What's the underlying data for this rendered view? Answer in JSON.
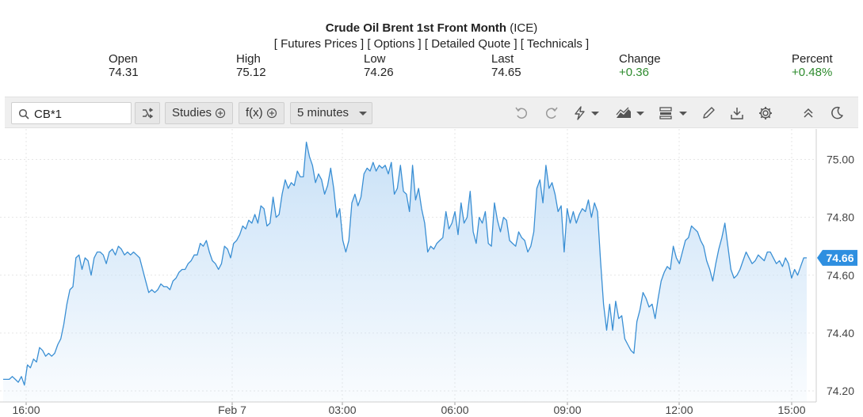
{
  "header": {
    "title": "Crude Oil Brent 1st Front Month",
    "exchange": "(ICE)",
    "links": [
      "[ Futures Prices ]",
      "[ Options ]",
      "[ Detailed Quote ]",
      "[ Technicals ]"
    ]
  },
  "stats": [
    {
      "label": "Open",
      "value": "74.31"
    },
    {
      "label": "High",
      "value": "75.12"
    },
    {
      "label": "Low",
      "value": "74.26"
    },
    {
      "label": "Last",
      "value": "74.65"
    },
    {
      "label": "Change",
      "value": "+0.36"
    },
    {
      "label": "Percent",
      "value": "+0.48%"
    }
  ],
  "toolbar": {
    "symbol": "CB*1",
    "studies_label": "Studies",
    "fx_label": "f(x)",
    "interval_label": "5 minutes",
    "icons": [
      "compare-icon",
      "undo-icon",
      "redo-icon",
      "lightning-icon",
      "chart-type-icon",
      "layout-icon",
      "pencil-icon",
      "download-icon",
      "gear-icon",
      "collapse-icon",
      "dark-mode-icon"
    ]
  },
  "colors": {
    "line": "#3a8fd4",
    "fill_top": "#cfe4f8",
    "last_badge": "#2e8fe0",
    "up": "#2e8b2e"
  },
  "chart_data": {
    "type": "area",
    "x_tick_labels": [
      "16:00",
      "Feb 7",
      "03:00",
      "06:00",
      "09:00",
      "12:00",
      "15:00"
    ],
    "y_tick_labels": [
      "75.00",
      "74.80",
      "74.60",
      "74.40",
      "74.20"
    ],
    "ylim": [
      74.17,
      75.1
    ],
    "last_value_label": "74.66",
    "grid": true,
    "series": [
      {
        "values": [
          74.24,
          74.24,
          74.24,
          74.25,
          74.24,
          74.23,
          74.25,
          74.22,
          74.29,
          74.28,
          74.31,
          74.3,
          74.35,
          74.34,
          74.32,
          74.33,
          74.32,
          74.33,
          74.36,
          74.38,
          74.43,
          74.5,
          74.55,
          74.56,
          74.66,
          74.67,
          74.62,
          74.66,
          74.65,
          74.6,
          74.66,
          74.68,
          74.68,
          74.67,
          74.64,
          74.68,
          74.69,
          74.67,
          74.7,
          74.69,
          74.67,
          74.68,
          74.67,
          74.68,
          74.67,
          74.66,
          74.62,
          74.58,
          74.54,
          74.55,
          74.54,
          74.55,
          74.57,
          74.56,
          74.56,
          74.55,
          74.58,
          74.59,
          74.61,
          74.62,
          74.62,
          74.64,
          74.65,
          74.67,
          74.67,
          74.71,
          74.7,
          74.72,
          74.68,
          74.65,
          74.64,
          74.62,
          74.64,
          74.7,
          74.69,
          74.66,
          74.71,
          74.72,
          74.74,
          74.77,
          74.76,
          74.79,
          74.78,
          74.81,
          74.78,
          74.84,
          74.83,
          74.77,
          74.78,
          74.87,
          74.8,
          74.81,
          74.88,
          74.93,
          74.9,
          74.92,
          74.91,
          74.96,
          74.94,
          74.94,
          75.06,
          75.01,
          74.98,
          74.92,
          74.95,
          74.93,
          74.88,
          74.91,
          74.97,
          74.9,
          74.8,
          74.83,
          74.72,
          74.68,
          74.72,
          74.85,
          74.88,
          74.84,
          74.87,
          74.95,
          74.97,
          74.96,
          74.99,
          74.96,
          74.98,
          74.97,
          74.98,
          74.95,
          74.99,
          74.88,
          74.9,
          74.98,
          74.89,
          74.88,
          74.82,
          74.98,
          74.86,
          74.9,
          74.83,
          74.78,
          74.68,
          74.7,
          74.69,
          74.71,
          74.72,
          74.73,
          74.82,
          74.76,
          74.78,
          74.82,
          74.74,
          74.85,
          74.78,
          74.8,
          74.89,
          74.75,
          74.71,
          74.8,
          74.78,
          74.82,
          74.71,
          74.7,
          74.85,
          74.79,
          74.75,
          74.8,
          74.79,
          74.72,
          74.71,
          74.7,
          74.75,
          74.73,
          74.72,
          74.68,
          74.7,
          74.75,
          74.9,
          74.93,
          74.85,
          74.98,
          74.9,
          74.92,
          74.88,
          74.82,
          74.84,
          74.68,
          74.83,
          74.78,
          74.82,
          74.78,
          74.81,
          74.83,
          74.82,
          74.86,
          74.8,
          74.85,
          74.82,
          74.65,
          74.5,
          74.41,
          74.5,
          74.41,
          74.51,
          74.45,
          74.46,
          74.38,
          74.36,
          74.34,
          74.33,
          74.44,
          74.48,
          74.54,
          74.52,
          74.49,
          74.5,
          74.45,
          74.52,
          74.58,
          74.61,
          74.63,
          74.62,
          74.7,
          74.66,
          74.64,
          74.68,
          74.72,
          74.73,
          74.77,
          74.76,
          74.75,
          74.72,
          74.7,
          74.65,
          74.62,
          74.58,
          74.64,
          74.69,
          74.73,
          74.78,
          74.7,
          74.62,
          74.59,
          74.6,
          74.62,
          74.65,
          74.68,
          74.66,
          74.64,
          74.65,
          74.67,
          74.66,
          74.65,
          74.68,
          74.68,
          74.66,
          74.64,
          74.65,
          74.63,
          74.66,
          74.64,
          74.59,
          74.62,
          74.6,
          74.63,
          74.66,
          74.66
        ]
      }
    ]
  }
}
